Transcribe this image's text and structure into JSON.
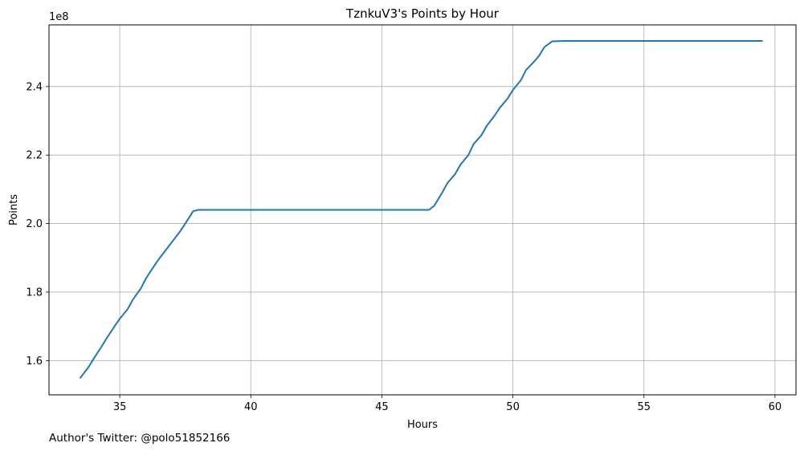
{
  "footer_text": "Author's Twitter: @polo51852166",
  "colors": {
    "line": "#1f77b4",
    "grid": "#b0b0b0",
    "axes": "#000000"
  },
  "chart_data": {
    "type": "line",
    "title": "TznkuV3's Points by Hour",
    "xlabel": "Hours",
    "ylabel": "Points",
    "y_offset_label": "1e8",
    "grid": true,
    "xlim": [
      32.3,
      60.8
    ],
    "ylim": [
      150000000.0,
      258000000.0
    ],
    "xticks": [
      35,
      40,
      45,
      50,
      55,
      60
    ],
    "yticks": [
      160000000.0,
      180000000.0,
      200000000.0,
      220000000.0,
      240000000.0
    ],
    "ytick_labels": [
      "1.6",
      "1.8",
      "2.0",
      "2.2",
      "2.4"
    ],
    "series": [
      {
        "color": "#1f77b4",
        "x": [
          33.5,
          33.8,
          34.0,
          34.3,
          34.5,
          34.8,
          35.0,
          35.3,
          35.5,
          35.8,
          36.0,
          36.3,
          36.5,
          36.8,
          37.0,
          37.3,
          37.5,
          37.8,
          38.0,
          38.5,
          40.0,
          42.0,
          44.0,
          46.0,
          46.8,
          47.0,
          47.3,
          47.5,
          47.8,
          48.0,
          48.3,
          48.5,
          48.8,
          49.0,
          49.3,
          49.5,
          49.8,
          50.0,
          50.3,
          50.5,
          50.8,
          51.0,
          51.2,
          51.5,
          52.0,
          54.0,
          56.0,
          58.0,
          59.5
        ],
        "y": [
          155000000.0,
          158000000.0,
          160500000.0,
          164000000.0,
          166500000.0,
          170000000.0,
          172200000.0,
          175000000.0,
          177800000.0,
          181000000.0,
          184000000.0,
          187500000.0,
          189700000.0,
          192700000.0,
          194700000.0,
          197700000.0,
          200000000.0,
          203600000.0,
          204000000.0,
          204000000.0,
          204000000.0,
          204000000.0,
          204000000.0,
          204000000.0,
          204000000.0,
          205200000.0,
          209000000.0,
          211800000.0,
          214500000.0,
          217200000.0,
          220000000.0,
          223200000.0,
          225800000.0,
          228500000.0,
          231500000.0,
          233800000.0,
          236500000.0,
          239000000.0,
          241800000.0,
          244800000.0,
          247200000.0,
          249000000.0,
          251500000.0,
          253200000.0,
          253300000.0,
          253300000.0,
          253300000.0,
          253300000.0,
          253300000.0
        ]
      }
    ]
  }
}
